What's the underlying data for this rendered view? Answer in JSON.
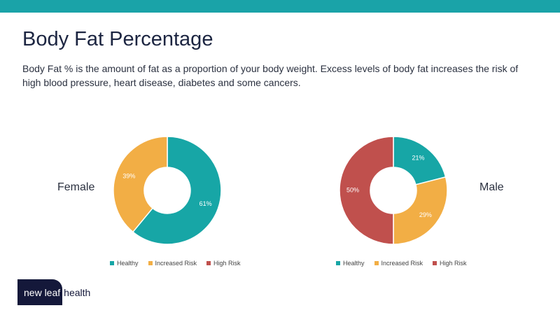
{
  "title": "Body Fat Percentage",
  "description": "Body Fat % is the amount of fat as a proportion of your body weight. Excess levels of body fat increases the risk of high blood pressure, heart disease, diabetes and some cancers.",
  "colors": {
    "top_bar": "#1aa3a8",
    "Healthy": "#17a6a6",
    "Increased Risk": "#f2ae45",
    "High Risk": "#c0504d"
  },
  "logo": {
    "part1": "new leaf",
    "part2": "health"
  },
  "chart_data": [
    {
      "type": "pie",
      "title": "Female",
      "categories": [
        "Healthy",
        "Increased Risk",
        "High Risk"
      ],
      "values": [
        61,
        39,
        0
      ],
      "data_labels": [
        "61%",
        "39%",
        ""
      ],
      "legend_position": "bottom",
      "donut": true
    },
    {
      "type": "pie",
      "title": "Male",
      "categories": [
        "Healthy",
        "Increased Risk",
        "High Risk"
      ],
      "values": [
        21,
        29,
        50
      ],
      "data_labels": [
        "21%",
        "29%",
        "50%"
      ],
      "legend_position": "bottom",
      "donut": true
    }
  ]
}
